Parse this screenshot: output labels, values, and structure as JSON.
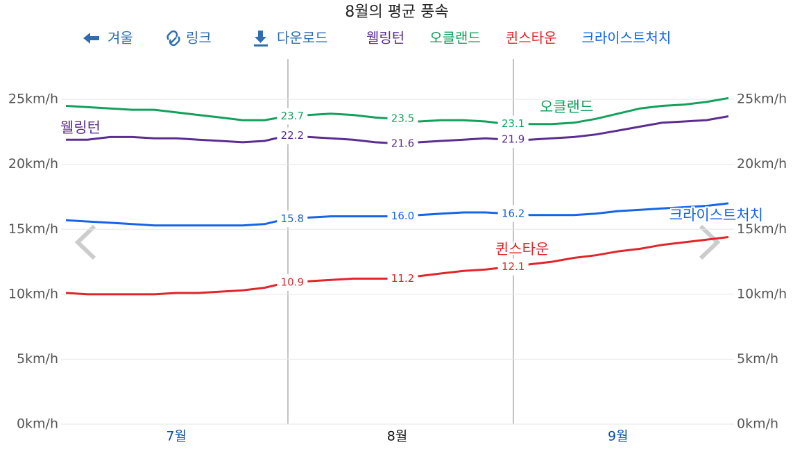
{
  "nav": [
    "겨울",
    "링크",
    "다운로드"
  ],
  "chart_data": {
    "type": "line",
    "title": "8월의 평균 풍속",
    "categories": [
      null,
      null,
      null,
      null,
      null,
      "7월",
      null,
      null,
      null,
      null,
      null,
      null,
      null,
      null,
      null,
      "8월",
      null,
      null,
      null,
      null,
      null,
      null,
      null,
      null,
      null,
      "9월",
      null,
      null,
      null,
      null,
      null
    ],
    "series": [
      {
        "name": "웰링턴",
        "color": "#5b2d90",
        "values": [
          21.9,
          21.9,
          22.1,
          22.1,
          22.0,
          22.0,
          21.9,
          21.8,
          21.7,
          21.8,
          22.2,
          22.1,
          22.0,
          21.9,
          21.7,
          21.6,
          21.7,
          21.8,
          21.9,
          22.0,
          21.9,
          21.9,
          22.0,
          22.1,
          22.3,
          22.6,
          22.9,
          23.2,
          23.3,
          23.4,
          23.7
        ],
        "value_labels": [
          null,
          null,
          null,
          null,
          null,
          null,
          null,
          null,
          null,
          null,
          "22.2",
          null,
          null,
          null,
          null,
          "21.6",
          null,
          null,
          null,
          null,
          "21.9",
          null,
          null,
          null,
          null,
          null,
          null,
          null,
          null,
          null,
          null
        ]
      },
      {
        "name": "오클랜드",
        "color": "#12a05c",
        "values": [
          24.5,
          24.4,
          24.3,
          24.2,
          24.2,
          24.0,
          23.8,
          23.6,
          23.4,
          23.4,
          23.7,
          23.8,
          23.9,
          23.8,
          23.6,
          23.5,
          23.3,
          23.4,
          23.4,
          23.3,
          23.1,
          23.1,
          23.1,
          23.2,
          23.5,
          23.9,
          24.3,
          24.5,
          24.6,
          24.8,
          25.1
        ],
        "value_labels": [
          null,
          null,
          null,
          null,
          null,
          null,
          null,
          null,
          null,
          null,
          "23.7",
          null,
          null,
          null,
          null,
          "23.5",
          null,
          null,
          null,
          null,
          "23.1",
          null,
          null,
          null,
          null,
          null,
          null,
          null,
          null,
          null,
          null
        ]
      },
      {
        "name": "퀸스타운",
        "color": "#e0262b",
        "values": [
          10.1,
          10.0,
          10.0,
          10.0,
          10.0,
          10.1,
          10.1,
          10.2,
          10.3,
          10.5,
          10.9,
          11.0,
          11.1,
          11.2,
          11.2,
          11.2,
          11.4,
          11.6,
          11.8,
          11.9,
          12.1,
          12.3,
          12.5,
          12.8,
          13.0,
          13.3,
          13.5,
          13.8,
          14.0,
          14.2,
          14.4
        ],
        "value_labels": [
          null,
          null,
          null,
          null,
          null,
          null,
          null,
          null,
          null,
          null,
          "10.9",
          null,
          null,
          null,
          null,
          "11.2",
          null,
          null,
          null,
          null,
          "12.1",
          null,
          null,
          null,
          null,
          null,
          null,
          null,
          null,
          null,
          null
        ]
      },
      {
        "name": "크라이스트처치",
        "color": "#1565e6",
        "values": [
          15.7,
          15.6,
          15.5,
          15.4,
          15.3,
          15.3,
          15.3,
          15.3,
          15.3,
          15.4,
          15.8,
          15.9,
          16.0,
          16.0,
          16.0,
          16.0,
          16.1,
          16.2,
          16.3,
          16.3,
          16.2,
          16.1,
          16.1,
          16.1,
          16.2,
          16.4,
          16.5,
          16.6,
          16.7,
          16.8,
          17.0
        ],
        "value_labels": [
          null,
          null,
          null,
          null,
          null,
          null,
          null,
          null,
          null,
          null,
          "15.8",
          null,
          null,
          null,
          null,
          "16.0",
          null,
          null,
          null,
          null,
          "16.2",
          null,
          null,
          null,
          null,
          null,
          null,
          null,
          null,
          null,
          null
        ]
      }
    ],
    "ylim": [
      0,
      28
    ],
    "yticks": [
      {
        "value": 0,
        "label": "0km/h"
      },
      {
        "value": 5,
        "label": "5km/h"
      },
      {
        "value": 10,
        "label": "10km/h"
      },
      {
        "value": 15,
        "label": "15km/h"
      },
      {
        "value": 20,
        "label": "20km/h"
      },
      {
        "value": 25,
        "label": "25km/h"
      }
    ],
    "grid": true
  }
}
